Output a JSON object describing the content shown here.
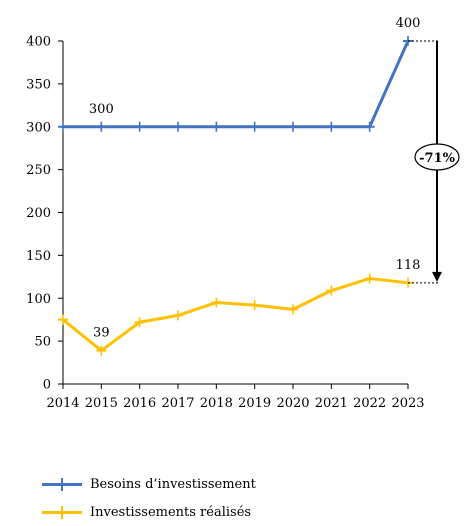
{
  "chart_data": {
    "type": "line",
    "x": [
      "2014",
      "2015",
      "2016",
      "2017",
      "2018",
      "2019",
      "2020",
      "2021",
      "2022",
      "2023"
    ],
    "series": [
      {
        "name": "Besoins d’investissement",
        "color": "#4472C4",
        "marker": "plus",
        "values": [
          300,
          300,
          300,
          300,
          300,
          300,
          300,
          300,
          300,
          400
        ]
      },
      {
        "name": "Investissements réalisés",
        "color": "#FFC000",
        "marker": "plus",
        "values": [
          75,
          39,
          72,
          80,
          95,
          92,
          87,
          109,
          123,
          118
        ]
      }
    ],
    "ylim": [
      0,
      400
    ],
    "yticks": [
      0,
      50,
      100,
      150,
      200,
      250,
      300,
      350,
      400
    ],
    "grid": false,
    "legend_position": "bottom-left",
    "data_labels": [
      {
        "series": 0,
        "index": 1,
        "text": "300"
      },
      {
        "series": 0,
        "index": 9,
        "text": "400"
      },
      {
        "series": 1,
        "index": 1,
        "text": "39"
      },
      {
        "series": 1,
        "index": 9,
        "text": "118"
      }
    ],
    "annotation": {
      "text": "-71%",
      "from_value": 400,
      "to_value": 118
    }
  }
}
